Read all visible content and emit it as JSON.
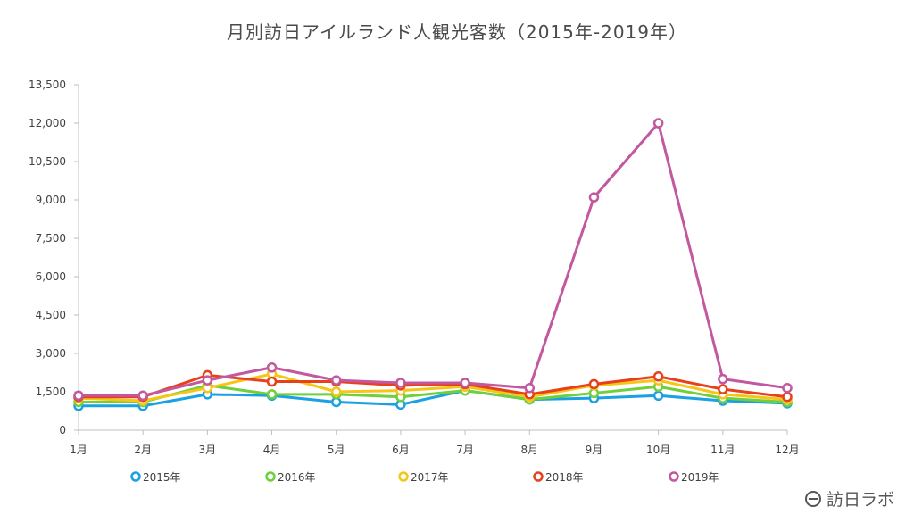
{
  "chart_data": {
    "type": "line",
    "title": "月別訪日アイルランド人観光客数（2015年-2019年）",
    "xlabel": "",
    "ylabel": "",
    "categories": [
      "1月",
      "2月",
      "3月",
      "4月",
      "5月",
      "6月",
      "7月",
      "8月",
      "9月",
      "10月",
      "11月",
      "12月"
    ],
    "y_ticks": [
      "0",
      "1,500",
      "3,000",
      "4,500",
      "6,000",
      "7,500",
      "9,000",
      "10,500",
      "12,000",
      "13,500"
    ],
    "ylim": [
      0,
      13500
    ],
    "grid": false,
    "legend_position": "bottom",
    "series": [
      {
        "name": "2015年",
        "color": "#1ba1e2",
        "values": [
          950,
          950,
          1400,
          1350,
          1100,
          1000,
          1550,
          1200,
          1250,
          1350,
          1150,
          1050
        ]
      },
      {
        "name": "2016年",
        "color": "#6fcf3c",
        "values": [
          1100,
          1100,
          1750,
          1400,
          1400,
          1300,
          1550,
          1200,
          1450,
          1700,
          1250,
          1100
        ]
      },
      {
        "name": "2017年",
        "color": "#f5c518",
        "values": [
          1250,
          1150,
          1650,
          2200,
          1500,
          1550,
          1700,
          1300,
          1750,
          1950,
          1400,
          1200
        ]
      },
      {
        "name": "2018年",
        "color": "#e8401c",
        "values": [
          1300,
          1300,
          2150,
          1900,
          1900,
          1750,
          1800,
          1400,
          1800,
          2100,
          1600,
          1300
        ]
      },
      {
        "name": "2019年",
        "color": "#c2589f",
        "values": [
          1350,
          1350,
          1950,
          2450,
          1950,
          1850,
          1850,
          1650,
          9100,
          12000,
          2000,
          1650
        ]
      }
    ]
  },
  "brand": {
    "label": "訪日ラボ"
  }
}
